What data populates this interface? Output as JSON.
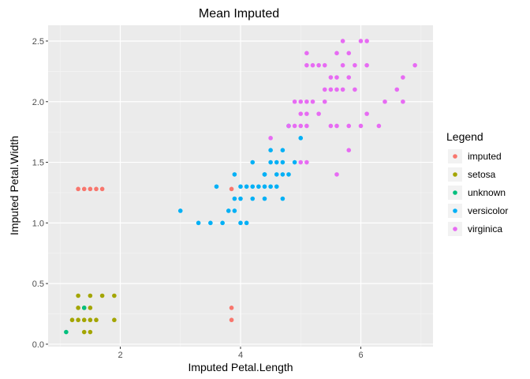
{
  "chart_data": {
    "type": "scatter",
    "title": "Mean Imputed",
    "xlabel": "Imputed Petal.Length",
    "ylabel": "Imputed Petal.Width",
    "xlim": [
      0.8,
      7.2
    ],
    "ylim": [
      -0.02,
      2.63
    ],
    "x_ticks": [
      2,
      4,
      6
    ],
    "y_ticks": [
      0.0,
      0.5,
      1.0,
      1.5,
      2.0,
      2.5
    ],
    "x_tick_labels": [
      "2",
      "4",
      "6"
    ],
    "y_tick_labels": [
      "0.0",
      "0.5",
      "1.0",
      "1.5",
      "2.0",
      "2.5"
    ],
    "grid": true,
    "legend": {
      "title": "Legend",
      "position": "right"
    },
    "series": [
      {
        "name": "imputed",
        "color": "#F8766D",
        "points": [
          [
            1.3,
            1.28
          ],
          [
            1.4,
            1.28
          ],
          [
            1.5,
            1.28
          ],
          [
            1.6,
            1.28
          ],
          [
            1.7,
            1.28
          ],
          [
            3.85,
            1.28
          ],
          [
            3.85,
            0.3
          ],
          [
            3.85,
            0.2
          ]
        ]
      },
      {
        "name": "setosa",
        "color": "#A3A500",
        "points": [
          [
            1.2,
            0.2
          ],
          [
            1.3,
            0.2
          ],
          [
            1.4,
            0.2
          ],
          [
            1.5,
            0.2
          ],
          [
            1.6,
            0.2
          ],
          [
            1.9,
            0.2
          ],
          [
            1.3,
            0.3
          ],
          [
            1.4,
            0.3
          ],
          [
            1.5,
            0.3
          ],
          [
            1.3,
            0.4
          ],
          [
            1.5,
            0.4
          ],
          [
            1.7,
            0.4
          ],
          [
            1.9,
            0.4
          ],
          [
            1.4,
            0.1
          ],
          [
            1.5,
            0.1
          ]
        ]
      },
      {
        "name": "unknown",
        "color": "#00BF7D",
        "points": [
          [
            1.1,
            0.1
          ],
          [
            1.4,
            0.3
          ]
        ]
      },
      {
        "name": "versicolor",
        "color": "#00B0F6",
        "points": [
          [
            3.0,
            1.1
          ],
          [
            3.3,
            1.0
          ],
          [
            3.5,
            1.0
          ],
          [
            3.6,
            1.3
          ],
          [
            3.7,
            1.0
          ],
          [
            3.8,
            1.1
          ],
          [
            3.9,
            1.1
          ],
          [
            3.9,
            1.2
          ],
          [
            3.9,
            1.4
          ],
          [
            4.0,
            1.0
          ],
          [
            4.0,
            1.2
          ],
          [
            4.0,
            1.3
          ],
          [
            4.1,
            1.0
          ],
          [
            4.1,
            1.3
          ],
          [
            4.2,
            1.2
          ],
          [
            4.2,
            1.3
          ],
          [
            4.2,
            1.5
          ],
          [
            4.3,
            1.3
          ],
          [
            4.4,
            1.2
          ],
          [
            4.4,
            1.3
          ],
          [
            4.4,
            1.4
          ],
          [
            4.5,
            1.3
          ],
          [
            4.5,
            1.5
          ],
          [
            4.6,
            1.3
          ],
          [
            4.6,
            1.4
          ],
          [
            4.6,
            1.5
          ],
          [
            4.5,
            1.6
          ],
          [
            4.7,
            1.2
          ],
          [
            4.7,
            1.4
          ],
          [
            4.7,
            1.6
          ],
          [
            4.8,
            1.4
          ],
          [
            4.8,
            1.8
          ],
          [
            4.9,
            1.5
          ],
          [
            5.0,
            1.7
          ],
          [
            4.7,
            1.5
          ],
          [
            4.4,
            1.4
          ]
        ]
      },
      {
        "name": "virginica",
        "color": "#E76BF3",
        "points": [
          [
            4.5,
            1.7
          ],
          [
            4.8,
            1.8
          ],
          [
            4.9,
            1.8
          ],
          [
            5.0,
            1.5
          ],
          [
            5.0,
            1.9
          ],
          [
            5.0,
            2.0
          ],
          [
            5.1,
            1.5
          ],
          [
            5.1,
            1.8
          ],
          [
            5.1,
            1.9
          ],
          [
            5.1,
            2.0
          ],
          [
            5.1,
            2.3
          ],
          [
            5.1,
            2.4
          ],
          [
            5.2,
            2.0
          ],
          [
            5.2,
            2.3
          ],
          [
            5.3,
            1.9
          ],
          [
            5.3,
            2.3
          ],
          [
            5.4,
            2.1
          ],
          [
            5.4,
            2.3
          ],
          [
            5.5,
            1.8
          ],
          [
            5.5,
            2.1
          ],
          [
            5.5,
            2.2
          ],
          [
            5.6,
            1.4
          ],
          [
            5.6,
            1.8
          ],
          [
            5.6,
            2.1
          ],
          [
            5.6,
            2.2
          ],
          [
            5.6,
            2.4
          ],
          [
            5.7,
            2.1
          ],
          [
            5.7,
            2.3
          ],
          [
            5.7,
            2.5
          ],
          [
            5.8,
            1.6
          ],
          [
            5.8,
            1.8
          ],
          [
            5.8,
            2.2
          ],
          [
            5.8,
            2.4
          ],
          [
            5.9,
            2.1
          ],
          [
            5.9,
            2.3
          ],
          [
            6.0,
            1.8
          ],
          [
            6.0,
            2.5
          ],
          [
            6.1,
            1.9
          ],
          [
            6.1,
            2.3
          ],
          [
            6.1,
            2.5
          ],
          [
            6.3,
            1.8
          ],
          [
            6.4,
            2.0
          ],
          [
            6.6,
            2.1
          ],
          [
            6.7,
            2.0
          ],
          [
            6.7,
            2.2
          ],
          [
            6.9,
            2.3
          ],
          [
            5.4,
            2.0
          ],
          [
            4.9,
            2.0
          ],
          [
            5.0,
            1.8
          ]
        ]
      }
    ]
  }
}
